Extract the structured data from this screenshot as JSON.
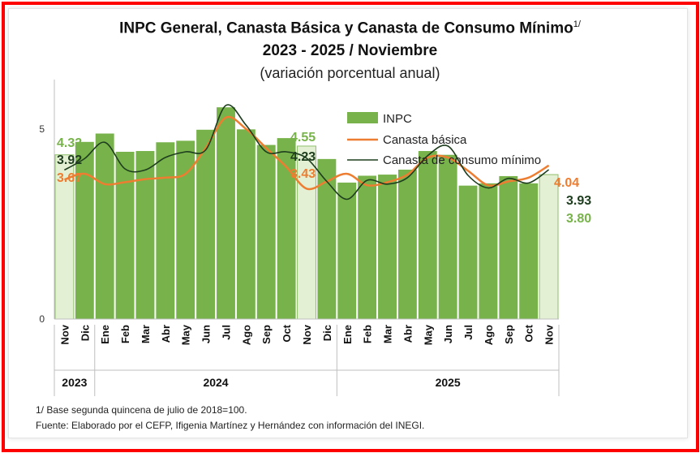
{
  "chart_data": {
    "type": "bar",
    "title": "INPC General, Canasta Básica  y Canasta de Consumo Mínimo",
    "title_sup": "1/",
    "subtitle": "2023 - 2025 / Noviembre",
    "units": "(variación porcentual anual)",
    "categories": [
      "Nov",
      "Dic",
      "Ene",
      "Feb",
      "Mar",
      "Abr",
      "May",
      "Jun",
      "Jul",
      "Ago",
      "Sep",
      "Oct",
      "Nov",
      "Dic",
      "Ene",
      "Feb",
      "Mar",
      "Abr",
      "May",
      "Jun",
      "Jul",
      "Ago",
      "Sep",
      "Oct",
      "Nov"
    ],
    "years": [
      {
        "label": "2023",
        "start": 0,
        "end": 1
      },
      {
        "label": "2024",
        "start": 2,
        "end": 13
      },
      {
        "label": "2025",
        "start": 14,
        "end": 24
      }
    ],
    "ylim": [
      0,
      6.3
    ],
    "yticks": [
      0,
      5
    ],
    "highlight_indices": [
      0,
      12,
      24
    ],
    "series": [
      {
        "name": "INPC",
        "kind": "bar",
        "color": "#77b34a",
        "highlight_color": "#e3f0d4",
        "values": [
          4.32,
          4.66,
          4.88,
          4.4,
          4.42,
          4.65,
          4.69,
          4.98,
          5.57,
          4.99,
          4.58,
          4.76,
          4.55,
          4.21,
          3.59,
          3.77,
          3.8,
          3.93,
          4.42,
          4.32,
          3.51,
          3.57,
          3.76,
          3.57,
          3.8
        ]
      },
      {
        "name": "Canasta básica",
        "kind": "line",
        "color": "#ed7d31",
        "values": [
          3.67,
          3.82,
          3.55,
          3.6,
          3.68,
          3.72,
          3.82,
          4.5,
          5.3,
          5.0,
          4.5,
          4.0,
          3.43,
          3.62,
          3.82,
          3.52,
          3.6,
          3.8,
          4.25,
          4.25,
          3.9,
          3.52,
          3.62,
          3.72,
          4.04
        ]
      },
      {
        "name": "Canasta de consumo mínimo",
        "kind": "line",
        "color": "#1e3d1e",
        "values": [
          3.92,
          4.22,
          4.65,
          3.95,
          3.92,
          4.25,
          4.4,
          4.45,
          5.62,
          5.1,
          4.4,
          4.4,
          4.23,
          3.62,
          3.15,
          3.65,
          3.55,
          3.72,
          4.3,
          4.55,
          3.78,
          3.45,
          3.7,
          3.58,
          3.93
        ]
      }
    ],
    "data_labels": [
      {
        "text": "4.32",
        "series": 0,
        "color": "#77b34a"
      },
      {
        "text": "3.92",
        "series": 2,
        "color": "#1e3d1e"
      },
      {
        "text": "3.67",
        "series": 1,
        "color": "#ed7d31"
      },
      {
        "text": "4.55",
        "series": 0,
        "color": "#77b34a"
      },
      {
        "text": "4.23",
        "series": 2,
        "color": "#1e3d1e"
      },
      {
        "text": "3.43",
        "series": 1,
        "color": "#ed7d31"
      },
      {
        "text": "4.04",
        "series": 1,
        "color": "#ed7d31"
      },
      {
        "text": "3.93",
        "series": 2,
        "color": "#1e3d1e"
      },
      {
        "text": "3.80",
        "series": 0,
        "color": "#77b34a"
      }
    ],
    "legend_position": "top-right",
    "grid": false
  },
  "footnotes": {
    "note": "1/ Base segunda quincena de julio de 2018=100.",
    "source": "Fuente: Elaborado por el CEFP, Ifigenia Martínez y Hernández con información del INEGI."
  }
}
